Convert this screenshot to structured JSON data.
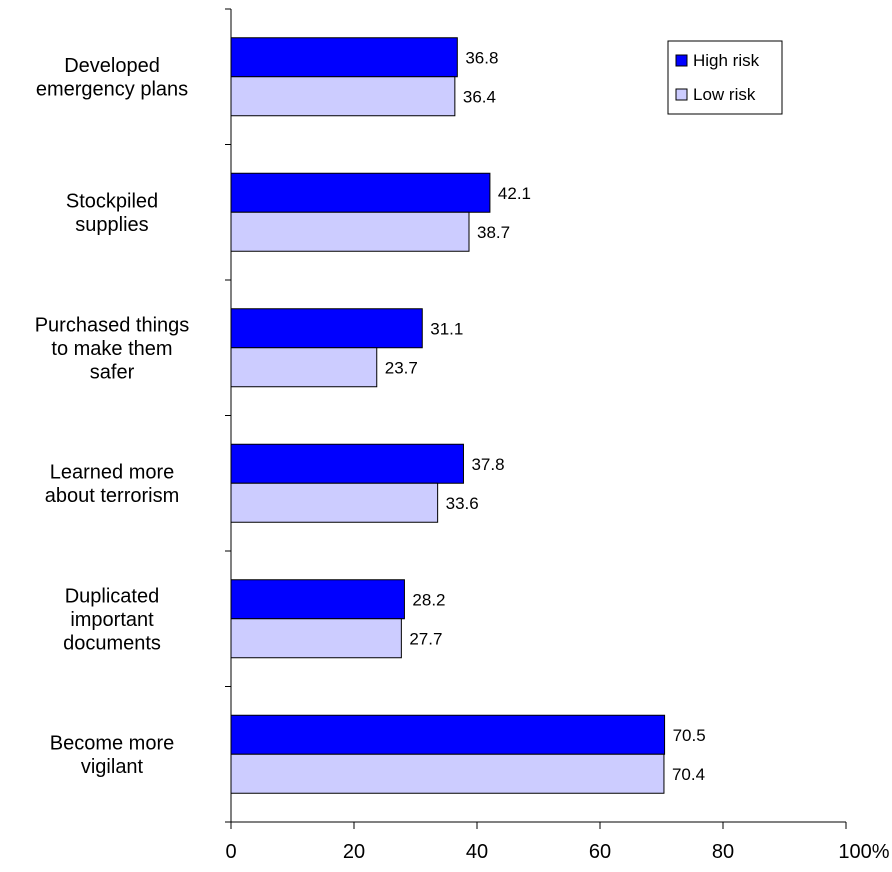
{
  "chart_data": {
    "type": "bar",
    "orientation": "horizontal",
    "categories": [
      [
        "Developed",
        "emergency plans"
      ],
      [
        "Stockpiled",
        "supplies"
      ],
      [
        "Purchased things",
        "to make them",
        "safer"
      ],
      [
        "Learned more",
        "about terrorism"
      ],
      [
        "Duplicated",
        "important",
        "documents"
      ],
      [
        "Become more",
        "vigilant"
      ]
    ],
    "series": [
      {
        "name": "High risk",
        "color": "#0000ff",
        "values": [
          36.8,
          42.1,
          31.1,
          37.8,
          28.2,
          70.5
        ],
        "labels": [
          "36.8",
          "42.1",
          "31.1",
          "37.8",
          "28.2",
          "70.5"
        ]
      },
      {
        "name": "Low risk",
        "color": "#ccccff",
        "values": [
          36.4,
          38.7,
          23.7,
          33.6,
          27.7,
          70.4
        ],
        "labels": [
          "36.4",
          "38.7",
          "23.7",
          "33.6",
          "27.7",
          "70.4"
        ]
      }
    ],
    "xlim": [
      0,
      100
    ],
    "xticks": [
      0,
      20,
      40,
      60,
      80,
      100
    ],
    "xtick_labels": [
      "0",
      "20",
      "40",
      "60",
      "80",
      "100%"
    ],
    "grid": false,
    "legend_position": "top-right"
  }
}
